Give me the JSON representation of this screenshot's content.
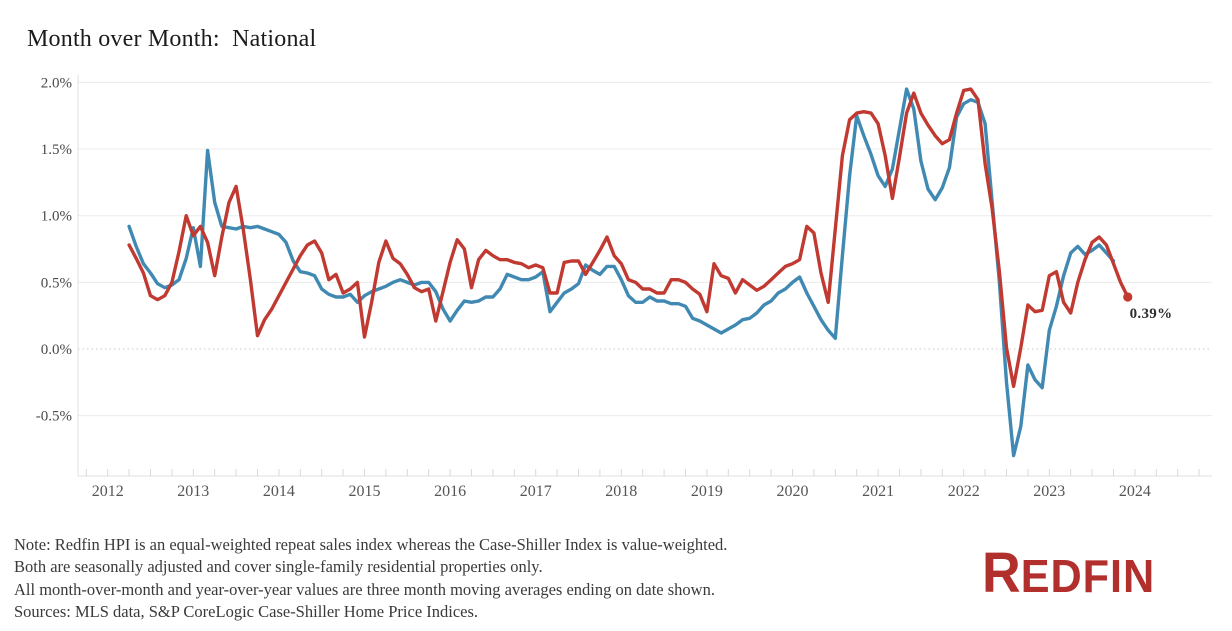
{
  "title": "Month over Month:  National",
  "end_label": "0.39%",
  "notes": {
    "line1": "Note: Redfin HPI is an equal-weighted repeat sales index whereas the Case-Shiller Index is value-weighted.",
    "line2": "Both are seasonally adjusted and cover single-family residential properties only.",
    "line3": "All month-over-month and year-over-year values are three month moving averages ending on date shown.",
    "line4": "Sources: MLS data, S&P CoreLogic Case-Shiller Home Price Indices."
  },
  "branding": {
    "logo_first": "R",
    "logo_rest": "EDFIN",
    "color": "#b1302e"
  },
  "chart_data": {
    "type": "line",
    "title": "Month over Month:  National",
    "xlabel": "",
    "ylabel": "",
    "grid": true,
    "legend": "none",
    "x_tick_labels": [
      "2012",
      "2013",
      "2014",
      "2015",
      "2016",
      "2017",
      "2018",
      "2019",
      "2020",
      "2021",
      "2022",
      "2023",
      "2024"
    ],
    "y_tick_labels": [
      "2.0%",
      "1.5%",
      "1.0%",
      "0.5%",
      "0.0%",
      "-0.5%"
    ],
    "y_tick_values": [
      2.0,
      1.5,
      1.0,
      0.5,
      0.0,
      -0.5
    ],
    "ylim": [
      -0.95,
      2.1
    ],
    "x_start_month": "2012-04",
    "frequency": "monthly",
    "end_annotation": {
      "series": "Redfin HPI",
      "x": "2023-12",
      "value_label": "0.39%",
      "value": 0.39
    },
    "series": [
      {
        "name": "Case-Shiller",
        "color": "#4089b2",
        "values": [
          0.92,
          0.77,
          0.64,
          0.57,
          0.49,
          0.46,
          0.48,
          0.52,
          0.68,
          0.91,
          0.62,
          1.49,
          1.1,
          0.92,
          0.91,
          0.9,
          0.92,
          0.91,
          0.92,
          0.9,
          0.88,
          0.86,
          0.8,
          0.66,
          0.58,
          0.57,
          0.55,
          0.45,
          0.41,
          0.39,
          0.39,
          0.41,
          0.35,
          0.4,
          0.43,
          0.45,
          0.47,
          0.5,
          0.52,
          0.5,
          0.48,
          0.5,
          0.5,
          0.43,
          0.3,
          0.21,
          0.29,
          0.36,
          0.35,
          0.36,
          0.39,
          0.39,
          0.45,
          0.56,
          0.54,
          0.52,
          0.52,
          0.54,
          0.58,
          0.28,
          0.35,
          0.42,
          0.45,
          0.49,
          0.63,
          0.59,
          0.56,
          0.62,
          0.62,
          0.52,
          0.4,
          0.35,
          0.35,
          0.39,
          0.36,
          0.36,
          0.34,
          0.34,
          0.32,
          0.23,
          0.21,
          0.18,
          0.15,
          0.12,
          0.15,
          0.18,
          0.22,
          0.23,
          0.27,
          0.33,
          0.36,
          0.42,
          0.45,
          0.5,
          0.54,
          0.42,
          0.32,
          0.22,
          0.14,
          0.08,
          0.7,
          1.3,
          1.75,
          1.6,
          1.46,
          1.3,
          1.22,
          1.35,
          1.65,
          1.95,
          1.8,
          1.41,
          1.2,
          1.12,
          1.21,
          1.36,
          1.74,
          1.84,
          1.87,
          1.85,
          1.69,
          1.1,
          0.5,
          -0.25,
          -0.8,
          -0.58,
          -0.12,
          -0.23,
          -0.29,
          0.14,
          0.32,
          0.55,
          0.72,
          0.77,
          0.71,
          0.74,
          0.78,
          0.72,
          0.66
        ]
      },
      {
        "name": "Redfin HPI",
        "color": "#c03a31",
        "values": [
          0.78,
          0.68,
          0.57,
          0.4,
          0.37,
          0.4,
          0.5,
          0.73,
          1.0,
          0.85,
          0.92,
          0.8,
          0.55,
          0.84,
          1.1,
          1.22,
          0.9,
          0.52,
          0.1,
          0.22,
          0.3,
          0.4,
          0.5,
          0.6,
          0.7,
          0.78,
          0.81,
          0.72,
          0.52,
          0.56,
          0.42,
          0.45,
          0.5,
          0.09,
          0.35,
          0.65,
          0.81,
          0.68,
          0.64,
          0.56,
          0.46,
          0.43,
          0.45,
          0.21,
          0.43,
          0.65,
          0.82,
          0.75,
          0.46,
          0.67,
          0.74,
          0.7,
          0.67,
          0.67,
          0.65,
          0.64,
          0.61,
          0.63,
          0.61,
          0.42,
          0.42,
          0.65,
          0.66,
          0.66,
          0.56,
          0.65,
          0.74,
          0.84,
          0.7,
          0.64,
          0.52,
          0.5,
          0.45,
          0.45,
          0.42,
          0.42,
          0.52,
          0.52,
          0.5,
          0.45,
          0.41,
          0.28,
          0.64,
          0.55,
          0.53,
          0.42,
          0.52,
          0.48,
          0.44,
          0.47,
          0.52,
          0.57,
          0.62,
          0.64,
          0.67,
          0.92,
          0.87,
          0.57,
          0.35,
          0.9,
          1.45,
          1.72,
          1.77,
          1.78,
          1.77,
          1.69,
          1.45,
          1.13,
          1.44,
          1.77,
          1.92,
          1.77,
          1.68,
          1.6,
          1.54,
          1.57,
          1.77,
          1.94,
          1.95,
          1.87,
          1.39,
          1.05,
          0.58,
          0.01,
          -0.28,
          0.01,
          0.33,
          0.28,
          0.29,
          0.55,
          0.58,
          0.35,
          0.27,
          0.5,
          0.67,
          0.8,
          0.84,
          0.78,
          0.64,
          0.5,
          0.39
        ]
      }
    ]
  },
  "style": {
    "grid_color": "#ececec",
    "zero_line_color": "#c9c9c9",
    "frame_color": "#e2e2e2",
    "tick_color": "#d9d9d9"
  }
}
